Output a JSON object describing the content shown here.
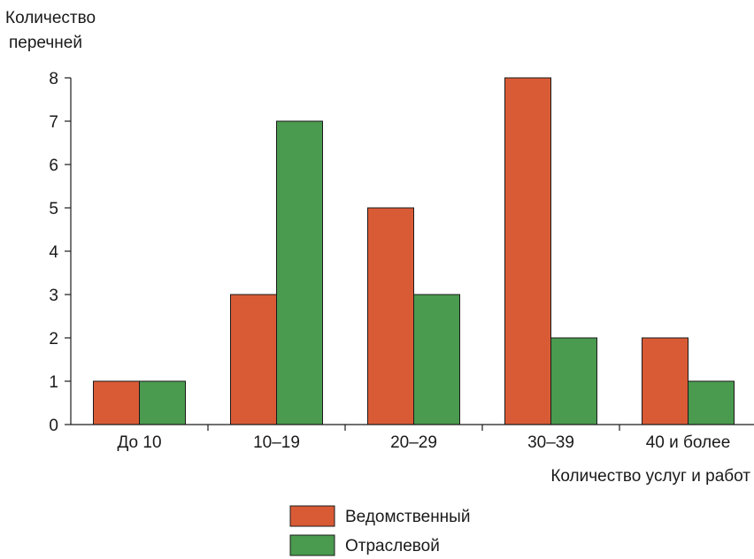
{
  "chart_data": {
    "type": "bar",
    "title": "",
    "ylabel_lines": [
      "Количество",
      "перечней"
    ],
    "xlabel": "Количество услуг и работ",
    "categories": [
      "До 10",
      "10–19",
      "20–29",
      "30–39",
      "40 и более"
    ],
    "ylim": [
      0,
      8
    ],
    "yticks": [
      "0",
      "1",
      "2",
      "3",
      "4",
      "5",
      "6",
      "7",
      "8"
    ],
    "grid": false,
    "legend_position": "bottom-center",
    "series": [
      {
        "name": "Ведомственный",
        "color": "#d95b35",
        "values": [
          1,
          3,
          5,
          8,
          2
        ]
      },
      {
        "name": "Отраслевой",
        "color": "#4a9a4f",
        "values": [
          1,
          7,
          3,
          2,
          1
        ]
      }
    ]
  }
}
